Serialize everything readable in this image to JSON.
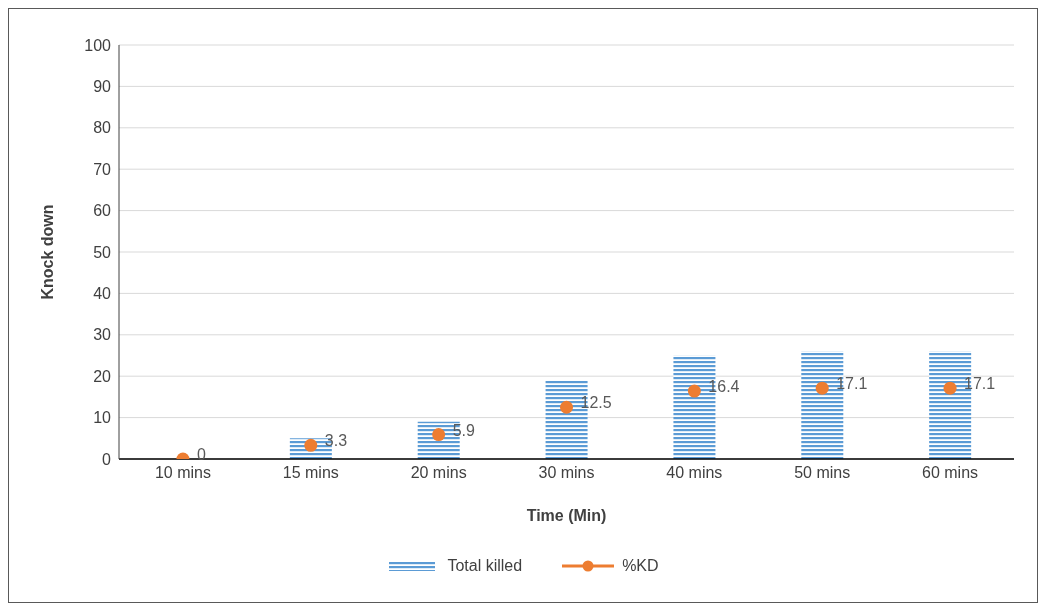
{
  "chart_data": {
    "type": "bar",
    "xlabel": "Time (Min)",
    "ylabel": "Knock down",
    "categories": [
      "10 mins",
      "15 mins",
      "20 mins",
      "30 mins",
      "40 mins",
      "50 mins",
      "60 mins"
    ],
    "series": [
      {
        "name": "Total killed",
        "color": "#5b9bd5",
        "values": [
          0,
          5,
          9,
          19,
          25,
          26,
          26
        ]
      },
      {
        "name": "%KD",
        "type": "scatter",
        "color": "#ed7d31",
        "marker": "circle",
        "values": [
          0,
          3.3,
          5.9,
          12.5,
          16.4,
          17.1,
          17.1
        ],
        "value_labels": [
          "0",
          "3.3",
          "5.9",
          "12.5",
          "16.4",
          "17.1",
          "17.1"
        ]
      }
    ],
    "ylim": [
      0,
      100
    ],
    "yticks": [
      0,
      10,
      20,
      30,
      40,
      50,
      60,
      70,
      80,
      90,
      100
    ],
    "grid": "y",
    "legend": "bottom"
  }
}
